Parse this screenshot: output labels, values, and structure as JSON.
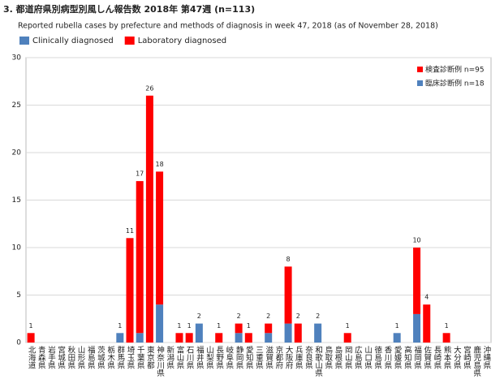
{
  "chart_data": {
    "type": "stacked_bar",
    "title": "3. 都道府県別病型別風しん報告数 2018年 第47週 (n=113)",
    "subtitle": "Reported rubella cases by prefecture and methods of diagnosis in week 47, 2018 (as of November 28, 2018)",
    "categories": [
      "北海道",
      "青森県",
      "岩手県",
      "宮城県",
      "秋田県",
      "山形県",
      "福島県",
      "茨城県",
      "栃木県",
      "群馬県",
      "埼玉県",
      "千葉県",
      "東京都",
      "神奈川県",
      "新潟県",
      "富山県",
      "石川県",
      "福井県",
      "山梨県",
      "長野県",
      "岐阜県",
      "静岡県",
      "愛知県",
      "三重県",
      "滋賀県",
      "京都府",
      "大阪府",
      "兵庫県",
      "奈良県",
      "和歌山県",
      "鳥取県",
      "島根県",
      "岡山県",
      "広島県",
      "山口県",
      "徳島県",
      "香川県",
      "愛媛県",
      "高知県",
      "福岡県",
      "佐賀県",
      "長崎県",
      "熊本県",
      "大分県",
      "宮崎県",
      "鹿児島県",
      "沖縄県"
    ],
    "series": [
      {
        "name": "Clinically diagnosed",
        "color": "#4f81bd",
        "values": [
          0,
          0,
          0,
          0,
          0,
          0,
          0,
          0,
          0,
          1,
          0,
          1,
          0,
          4,
          0,
          0,
          0,
          2,
          0,
          0,
          0,
          1,
          0,
          0,
          1,
          0,
          2,
          0,
          0,
          2,
          0,
          0,
          0,
          0,
          0,
          0,
          0,
          1,
          0,
          3,
          0,
          0,
          0,
          0,
          0,
          0,
          0
        ]
      },
      {
        "name": "Laboratory diagnosed",
        "color": "#ff0000",
        "values": [
          1,
          0,
          0,
          0,
          0,
          0,
          0,
          0,
          0,
          0,
          11,
          16,
          26,
          14,
          0,
          1,
          1,
          0,
          0,
          1,
          0,
          1,
          1,
          0,
          1,
          0,
          6,
          2,
          0,
          0,
          0,
          0,
          1,
          0,
          0,
          0,
          0,
          0,
          0,
          7,
          4,
          0,
          1,
          0,
          0,
          0,
          0
        ]
      }
    ],
    "total_labels": [
      1,
      null,
      null,
      null,
      null,
      null,
      null,
      null,
      null,
      1,
      11,
      17,
      26,
      18,
      null,
      1,
      1,
      2,
      null,
      1,
      null,
      2,
      1,
      null,
      2,
      null,
      8,
      2,
      null,
      2,
      null,
      null,
      1,
      null,
      null,
      null,
      null,
      1,
      null,
      10,
      4,
      null,
      1,
      null,
      null,
      null,
      null
    ],
    "legend_notes": [
      "検査診断例 n=95",
      "臨床診断例 n=18"
    ],
    "ylim": [
      0,
      30
    ],
    "yticks": [
      0,
      5,
      10,
      15,
      20,
      25,
      30
    ],
    "grid": true
  }
}
